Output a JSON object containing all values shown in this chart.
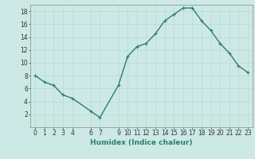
{
  "x": [
    0,
    1,
    2,
    3,
    4,
    6,
    7,
    9,
    10,
    11,
    12,
    13,
    14,
    15,
    16,
    17,
    18,
    19,
    20,
    21,
    22,
    23
  ],
  "y": [
    8,
    7,
    6.5,
    5,
    4.5,
    2.5,
    1.5,
    6.5,
    11,
    12.5,
    13,
    14.5,
    16.5,
    17.5,
    18.5,
    18.5,
    16.5,
    15,
    13,
    11.5,
    9.5,
    8.5
  ],
  "line_color": "#2e7d6e",
  "marker": "+",
  "marker_size": 3,
  "background_color": "#cce9e5",
  "grid_color": "#b8d8d4",
  "xlabel": "Humidex (Indice chaleur)",
  "xlim": [
    -0.5,
    23.5
  ],
  "ylim": [
    0,
    19
  ],
  "yticks": [
    2,
    4,
    6,
    8,
    10,
    12,
    14,
    16,
    18
  ],
  "xticks": [
    0,
    1,
    2,
    3,
    4,
    6,
    7,
    9,
    10,
    11,
    12,
    13,
    14,
    15,
    16,
    17,
    18,
    19,
    20,
    21,
    22,
    23
  ],
  "tick_labelsize": 5.5,
  "xlabel_fontsize": 6.5,
  "linewidth": 1.0
}
